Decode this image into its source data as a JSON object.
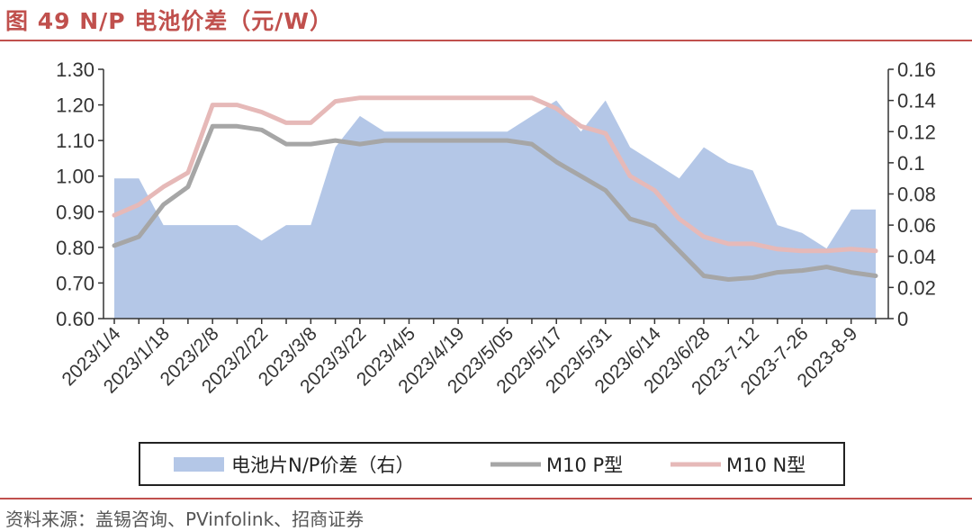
{
  "header": {
    "title": "图 49 N/P 电池价差（元/W）"
  },
  "footer": {
    "source": "资料来源：盖锡咨询、PVinfolink、招商证券"
  },
  "colors": {
    "area": "#b4c7e7",
    "p_line": "#a6a6a6",
    "n_line": "#e6b9b8",
    "accent": "#c0504d"
  },
  "chart_data": {
    "type": "line",
    "x_tick_labels": [
      "2023/1/4",
      "2023/1/18",
      "2023/2/8",
      "2023/2/22",
      "2023/3/8",
      "2023/3/22",
      "2023/4/5",
      "2023/4/19",
      "2023/5/05",
      "2023/5/17",
      "2023/5/31",
      "2023/6/14",
      "2023/6/28",
      "2023-7-12",
      "2023-7-26",
      "2023-8-9"
    ],
    "y_left": {
      "range": [
        0.6,
        1.3
      ],
      "ticks": [
        "0.60",
        "0.70",
        "0.80",
        "0.90",
        "1.00",
        "1.10",
        "1.20",
        "1.30"
      ]
    },
    "y_right": {
      "range": [
        0,
        0.16
      ],
      "ticks": [
        "0",
        "0.02",
        "0.04",
        "0.06",
        "0.08",
        "0.1",
        "0.12",
        "0.14",
        "0.16"
      ]
    },
    "series": [
      {
        "name": "电池片N/P价差（右）",
        "type": "area",
        "axis": "right",
        "values": [
          0.09,
          0.09,
          0.06,
          0.06,
          0.06,
          0.06,
          0.05,
          0.06,
          0.06,
          0.11,
          0.13,
          0.12,
          0.12,
          0.12,
          0.12,
          0.12,
          0.12,
          0.13,
          0.14,
          0.12,
          0.14,
          0.11,
          0.1,
          0.09,
          0.11,
          0.1,
          0.095,
          0.06,
          0.055,
          0.045,
          0.07,
          0.07
        ]
      },
      {
        "name": "M10 P型",
        "type": "line",
        "axis": "left",
        "values": [
          0.805,
          0.83,
          0.92,
          0.97,
          1.14,
          1.14,
          1.13,
          1.09,
          1.09,
          1.1,
          1.09,
          1.1,
          1.1,
          1.1,
          1.1,
          1.1,
          1.1,
          1.09,
          1.04,
          1.0,
          0.96,
          0.88,
          0.86,
          0.79,
          0.72,
          0.71,
          0.715,
          0.73,
          0.735,
          0.745,
          0.73,
          0.72
        ]
      },
      {
        "name": "M10 N型",
        "type": "line",
        "axis": "left",
        "values": [
          0.89,
          0.92,
          0.97,
          1.01,
          1.2,
          1.2,
          1.18,
          1.15,
          1.15,
          1.21,
          1.22,
          1.22,
          1.22,
          1.22,
          1.22,
          1.22,
          1.22,
          1.22,
          1.19,
          1.14,
          1.12,
          1.0,
          0.96,
          0.88,
          0.83,
          0.81,
          0.81,
          0.795,
          0.79,
          0.79,
          0.795,
          0.79
        ]
      }
    ],
    "grid": false,
    "legend_position": "bottom"
  }
}
